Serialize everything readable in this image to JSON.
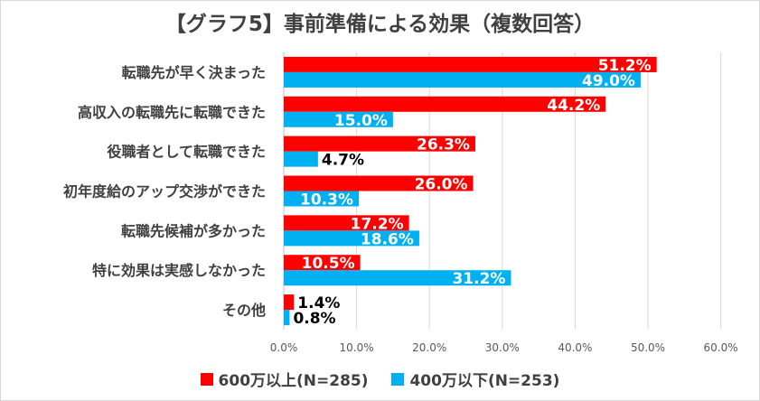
{
  "chart_data": {
    "type": "bar",
    "orientation": "horizontal",
    "title": "【グラフ5】事前準備による効果（複数回答）",
    "categories": [
      "転職先が早く決まった",
      "高収入の転職先に転職できた",
      "役職者として転職できた",
      "初年度給のアップ交渉ができた",
      "転職先候補が多かった",
      "特に効果は実感しなかった",
      "その他"
    ],
    "series": [
      {
        "name": "600万以上(N=285)",
        "color": "#ff0000",
        "values": [
          51.2,
          44.2,
          26.3,
          26.0,
          17.2,
          10.5,
          1.4
        ]
      },
      {
        "name": "400万以下(N=253)",
        "color": "#00b0f0",
        "values": [
          49.0,
          15.0,
          4.7,
          10.3,
          18.6,
          31.2,
          0.8
        ]
      }
    ],
    "xlim": [
      0,
      60
    ],
    "xticks": [
      "0.0%",
      "10.0%",
      "20.0%",
      "30.0%",
      "40.0%",
      "50.0%",
      "60.0%"
    ],
    "value_format": "%",
    "grid": true,
    "legend_position": "bottom"
  }
}
